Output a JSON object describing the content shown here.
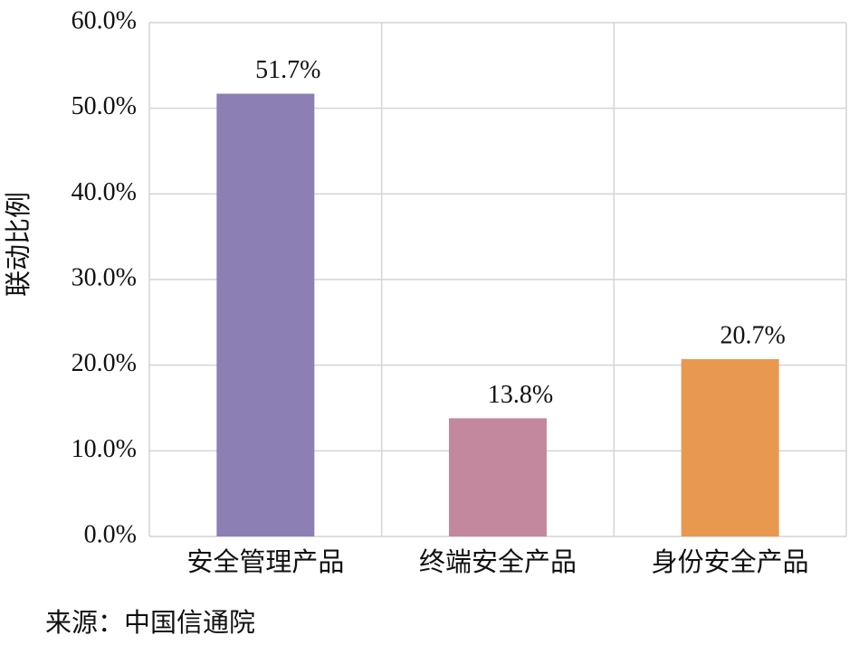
{
  "chart_data": {
    "type": "bar",
    "y_label": "联动比例",
    "source": "来源：中国信通院",
    "categories": [
      "安全管理产品",
      "终端安全产品",
      "身份安全产品"
    ],
    "values": [
      51.7,
      13.8,
      20.7
    ],
    "value_labels": [
      "51.7%",
      "13.8%",
      "20.7%"
    ],
    "colors": [
      "#8b7fb4",
      "#c4889e",
      "#e8994f"
    ],
    "ylim": [
      0,
      60
    ],
    "yticks": [
      {
        "value": 0,
        "label": "0.0%"
      },
      {
        "value": 10,
        "label": "10.0%"
      },
      {
        "value": 20,
        "label": "20.0%"
      },
      {
        "value": 30,
        "label": "30.0%"
      },
      {
        "value": 40,
        "label": "40.0%"
      },
      {
        "value": 50,
        "label": "50.0%"
      },
      {
        "value": 60,
        "label": "60.0%"
      }
    ],
    "grid": true
  }
}
